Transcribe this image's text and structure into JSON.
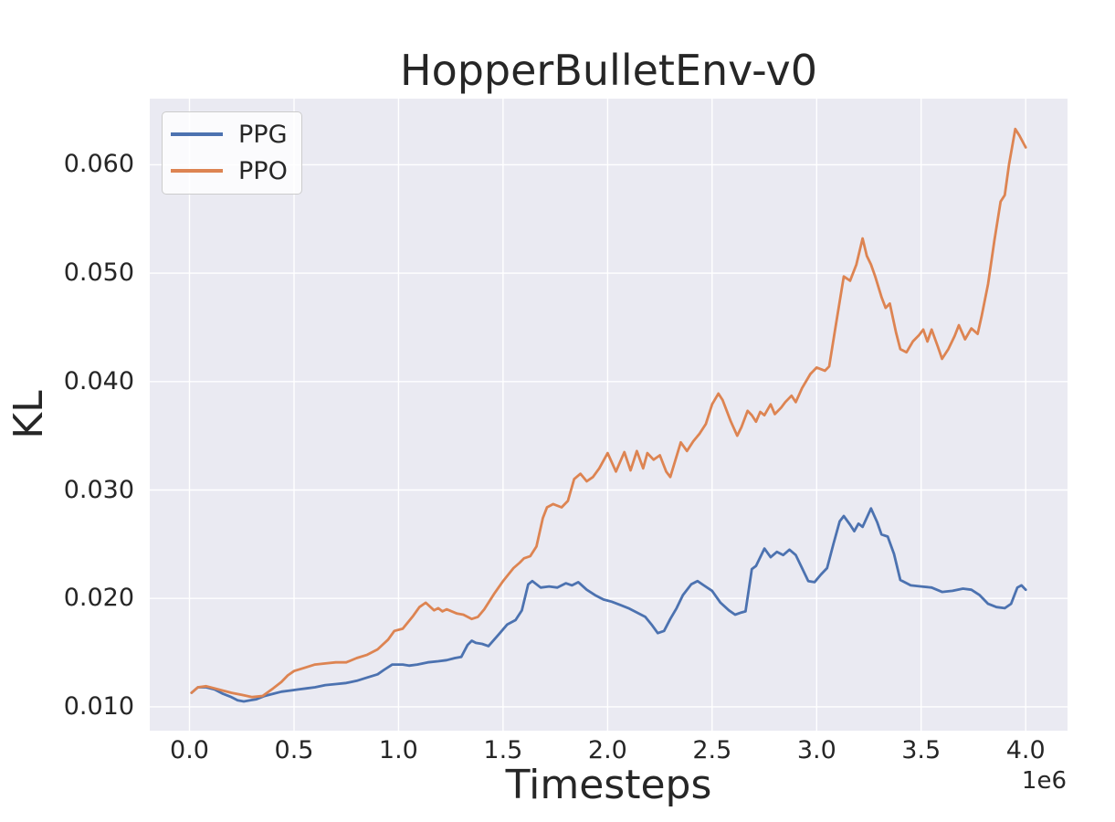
{
  "figure": {
    "background": "#FFFFFF",
    "plot_background": "#EAEAF2",
    "grid_color": "#FFFFFF",
    "text_color": "#262626"
  },
  "chart_data": {
    "type": "line",
    "title": "HopperBulletEnv-v0",
    "xlabel": "Timesteps",
    "ylabel": "KL",
    "x_offset_label": "1e6",
    "x_unit": "1e6",
    "xlim": [
      -0.19,
      4.2
    ],
    "ylim": [
      0.0078,
      0.0661
    ],
    "grid": true,
    "xticks": {
      "values": [
        0.0,
        0.5,
        1.0,
        1.5,
        2.0,
        2.5,
        3.0,
        3.5,
        4.0
      ],
      "labels": [
        "0.0",
        "0.5",
        "1.0",
        "1.5",
        "2.0",
        "2.5",
        "3.0",
        "3.5",
        "4.0"
      ]
    },
    "yticks": {
      "values": [
        0.01,
        0.02,
        0.03,
        0.04,
        0.05,
        0.06
      ],
      "labels": [
        "0.010",
        "0.020",
        "0.030",
        "0.040",
        "0.050",
        "0.060"
      ]
    },
    "legend": {
      "position": "upper left",
      "entries": [
        "PPG",
        "PPO"
      ]
    },
    "series": [
      {
        "name": "PPG",
        "color": "#4C72B0",
        "points": [
          [
            0.01,
            0.0113
          ],
          [
            0.04,
            0.0118
          ],
          [
            0.08,
            0.0118
          ],
          [
            0.12,
            0.0116
          ],
          [
            0.16,
            0.0112
          ],
          [
            0.2,
            0.0109
          ],
          [
            0.23,
            0.0106
          ],
          [
            0.26,
            0.0105
          ],
          [
            0.29,
            0.0106
          ],
          [
            0.32,
            0.0107
          ],
          [
            0.36,
            0.011
          ],
          [
            0.4,
            0.0112
          ],
          [
            0.44,
            0.0114
          ],
          [
            0.48,
            0.0115
          ],
          [
            0.52,
            0.0116
          ],
          [
            0.56,
            0.0117
          ],
          [
            0.6,
            0.0118
          ],
          [
            0.65,
            0.012
          ],
          [
            0.7,
            0.0121
          ],
          [
            0.75,
            0.0122
          ],
          [
            0.8,
            0.0124
          ],
          [
            0.85,
            0.0127
          ],
          [
            0.9,
            0.013
          ],
          [
            0.93,
            0.0134
          ],
          [
            0.97,
            0.0139
          ],
          [
            1.02,
            0.0139
          ],
          [
            1.05,
            0.0138
          ],
          [
            1.09,
            0.0139
          ],
          [
            1.14,
            0.0141
          ],
          [
            1.19,
            0.0142
          ],
          [
            1.23,
            0.0143
          ],
          [
            1.27,
            0.0145
          ],
          [
            1.3,
            0.0146
          ],
          [
            1.33,
            0.0157
          ],
          [
            1.35,
            0.0161
          ],
          [
            1.37,
            0.0159
          ],
          [
            1.4,
            0.0158
          ],
          [
            1.43,
            0.0156
          ],
          [
            1.48,
            0.0167
          ],
          [
            1.52,
            0.0176
          ],
          [
            1.56,
            0.018
          ],
          [
            1.59,
            0.0189
          ],
          [
            1.62,
            0.0213
          ],
          [
            1.64,
            0.0216
          ],
          [
            1.68,
            0.021
          ],
          [
            1.72,
            0.0211
          ],
          [
            1.76,
            0.021
          ],
          [
            1.8,
            0.0214
          ],
          [
            1.83,
            0.0212
          ],
          [
            1.86,
            0.0215
          ],
          [
            1.9,
            0.0208
          ],
          [
            1.94,
            0.0203
          ],
          [
            1.98,
            0.0199
          ],
          [
            2.02,
            0.0197
          ],
          [
            2.06,
            0.0194
          ],
          [
            2.1,
            0.0191
          ],
          [
            2.14,
            0.0187
          ],
          [
            2.18,
            0.0183
          ],
          [
            2.21,
            0.0176
          ],
          [
            2.24,
            0.0168
          ],
          [
            2.27,
            0.017
          ],
          [
            2.3,
            0.0181
          ],
          [
            2.33,
            0.0191
          ],
          [
            2.36,
            0.0203
          ],
          [
            2.4,
            0.0213
          ],
          [
            2.43,
            0.0216
          ],
          [
            2.46,
            0.0212
          ],
          [
            2.5,
            0.0207
          ],
          [
            2.54,
            0.0196
          ],
          [
            2.58,
            0.0189
          ],
          [
            2.61,
            0.0185
          ],
          [
            2.64,
            0.0187
          ],
          [
            2.66,
            0.0188
          ],
          [
            2.69,
            0.0227
          ],
          [
            2.71,
            0.023
          ],
          [
            2.75,
            0.0246
          ],
          [
            2.78,
            0.0238
          ],
          [
            2.81,
            0.0243
          ],
          [
            2.84,
            0.024
          ],
          [
            2.87,
            0.0245
          ],
          [
            2.9,
            0.024
          ],
          [
            2.93,
            0.0228
          ],
          [
            2.96,
            0.0216
          ],
          [
            2.99,
            0.0215
          ],
          [
            3.02,
            0.0222
          ],
          [
            3.05,
            0.0228
          ],
          [
            3.08,
            0.025
          ],
          [
            3.11,
            0.0271
          ],
          [
            3.13,
            0.0276
          ],
          [
            3.16,
            0.0268
          ],
          [
            3.18,
            0.0262
          ],
          [
            3.2,
            0.0269
          ],
          [
            3.22,
            0.0266
          ],
          [
            3.26,
            0.0283
          ],
          [
            3.29,
            0.027
          ],
          [
            3.31,
            0.0259
          ],
          [
            3.34,
            0.0257
          ],
          [
            3.37,
            0.0241
          ],
          [
            3.4,
            0.0217
          ],
          [
            3.45,
            0.0212
          ],
          [
            3.5,
            0.0211
          ],
          [
            3.55,
            0.021
          ],
          [
            3.6,
            0.0206
          ],
          [
            3.65,
            0.0207
          ],
          [
            3.7,
            0.0209
          ],
          [
            3.74,
            0.0208
          ],
          [
            3.78,
            0.0203
          ],
          [
            3.82,
            0.0195
          ],
          [
            3.86,
            0.0192
          ],
          [
            3.9,
            0.0191
          ],
          [
            3.93,
            0.0195
          ],
          [
            3.96,
            0.021
          ],
          [
            3.98,
            0.0212
          ],
          [
            4.0,
            0.0208
          ]
        ]
      },
      {
        "name": "PPO",
        "color": "#DD8452",
        "points": [
          [
            0.01,
            0.0113
          ],
          [
            0.04,
            0.0118
          ],
          [
            0.08,
            0.0119
          ],
          [
            0.12,
            0.0117
          ],
          [
            0.16,
            0.0115
          ],
          [
            0.2,
            0.0113
          ],
          [
            0.25,
            0.0111
          ],
          [
            0.3,
            0.0109
          ],
          [
            0.35,
            0.011
          ],
          [
            0.4,
            0.0117
          ],
          [
            0.44,
            0.0123
          ],
          [
            0.47,
            0.0129
          ],
          [
            0.5,
            0.0133
          ],
          [
            0.55,
            0.0136
          ],
          [
            0.6,
            0.0139
          ],
          [
            0.65,
            0.014
          ],
          [
            0.7,
            0.0141
          ],
          [
            0.75,
            0.0141
          ],
          [
            0.8,
            0.0145
          ],
          [
            0.85,
            0.0148
          ],
          [
            0.9,
            0.0153
          ],
          [
            0.95,
            0.0162
          ],
          [
            0.98,
            0.017
          ],
          [
            1.02,
            0.0172
          ],
          [
            1.07,
            0.0184
          ],
          [
            1.1,
            0.0192
          ],
          [
            1.13,
            0.0196
          ],
          [
            1.17,
            0.0189
          ],
          [
            1.19,
            0.0191
          ],
          [
            1.21,
            0.0188
          ],
          [
            1.23,
            0.019
          ],
          [
            1.28,
            0.0186
          ],
          [
            1.31,
            0.0185
          ],
          [
            1.35,
            0.0181
          ],
          [
            1.38,
            0.0183
          ],
          [
            1.41,
            0.019
          ],
          [
            1.46,
            0.0205
          ],
          [
            1.5,
            0.0216
          ],
          [
            1.55,
            0.0228
          ],
          [
            1.58,
            0.0233
          ],
          [
            1.6,
            0.0237
          ],
          [
            1.63,
            0.0239
          ],
          [
            1.66,
            0.0248
          ],
          [
            1.69,
            0.0274
          ],
          [
            1.71,
            0.0284
          ],
          [
            1.74,
            0.0287
          ],
          [
            1.78,
            0.0284
          ],
          [
            1.81,
            0.029
          ],
          [
            1.84,
            0.031
          ],
          [
            1.87,
            0.0315
          ],
          [
            1.9,
            0.0308
          ],
          [
            1.93,
            0.0312
          ],
          [
            1.96,
            0.032
          ],
          [
            2.0,
            0.0334
          ],
          [
            2.04,
            0.0317
          ],
          [
            2.08,
            0.0335
          ],
          [
            2.11,
            0.0318
          ],
          [
            2.14,
            0.0336
          ],
          [
            2.17,
            0.032
          ],
          [
            2.19,
            0.0334
          ],
          [
            2.22,
            0.0328
          ],
          [
            2.25,
            0.0332
          ],
          [
            2.28,
            0.0317
          ],
          [
            2.3,
            0.0312
          ],
          [
            2.35,
            0.0344
          ],
          [
            2.38,
            0.0336
          ],
          [
            2.41,
            0.0345
          ],
          [
            2.44,
            0.0352
          ],
          [
            2.47,
            0.0361
          ],
          [
            2.5,
            0.0379
          ],
          [
            2.53,
            0.0389
          ],
          [
            2.55,
            0.0383
          ],
          [
            2.59,
            0.0363
          ],
          [
            2.62,
            0.035
          ],
          [
            2.64,
            0.0358
          ],
          [
            2.67,
            0.0373
          ],
          [
            2.69,
            0.0369
          ],
          [
            2.71,
            0.0363
          ],
          [
            2.73,
            0.0372
          ],
          [
            2.75,
            0.0369
          ],
          [
            2.78,
            0.0379
          ],
          [
            2.8,
            0.037
          ],
          [
            2.83,
            0.0376
          ],
          [
            2.85,
            0.0381
          ],
          [
            2.88,
            0.0387
          ],
          [
            2.9,
            0.0381
          ],
          [
            2.93,
            0.0394
          ],
          [
            2.97,
            0.0407
          ],
          [
            3.0,
            0.0413
          ],
          [
            3.04,
            0.041
          ],
          [
            3.06,
            0.0414
          ],
          [
            3.09,
            0.045
          ],
          [
            3.13,
            0.0497
          ],
          [
            3.16,
            0.0493
          ],
          [
            3.19,
            0.0508
          ],
          [
            3.22,
            0.0532
          ],
          [
            3.24,
            0.0516
          ],
          [
            3.26,
            0.0508
          ],
          [
            3.28,
            0.0497
          ],
          [
            3.31,
            0.0478
          ],
          [
            3.33,
            0.0468
          ],
          [
            3.35,
            0.0472
          ],
          [
            3.38,
            0.0445
          ],
          [
            3.4,
            0.043
          ],
          [
            3.43,
            0.0427
          ],
          [
            3.46,
            0.0437
          ],
          [
            3.49,
            0.0443
          ],
          [
            3.51,
            0.0448
          ],
          [
            3.53,
            0.0437
          ],
          [
            3.55,
            0.0448
          ],
          [
            3.58,
            0.0432
          ],
          [
            3.6,
            0.0421
          ],
          [
            3.63,
            0.043
          ],
          [
            3.66,
            0.0442
          ],
          [
            3.68,
            0.0452
          ],
          [
            3.71,
            0.0439
          ],
          [
            3.74,
            0.0449
          ],
          [
            3.77,
            0.0444
          ],
          [
            3.79,
            0.0461
          ],
          [
            3.82,
            0.049
          ],
          [
            3.85,
            0.053
          ],
          [
            3.88,
            0.0566
          ],
          [
            3.9,
            0.0572
          ],
          [
            3.92,
            0.06
          ],
          [
            3.95,
            0.0633
          ],
          [
            3.97,
            0.0627
          ],
          [
            4.0,
            0.0616
          ]
        ]
      }
    ]
  }
}
